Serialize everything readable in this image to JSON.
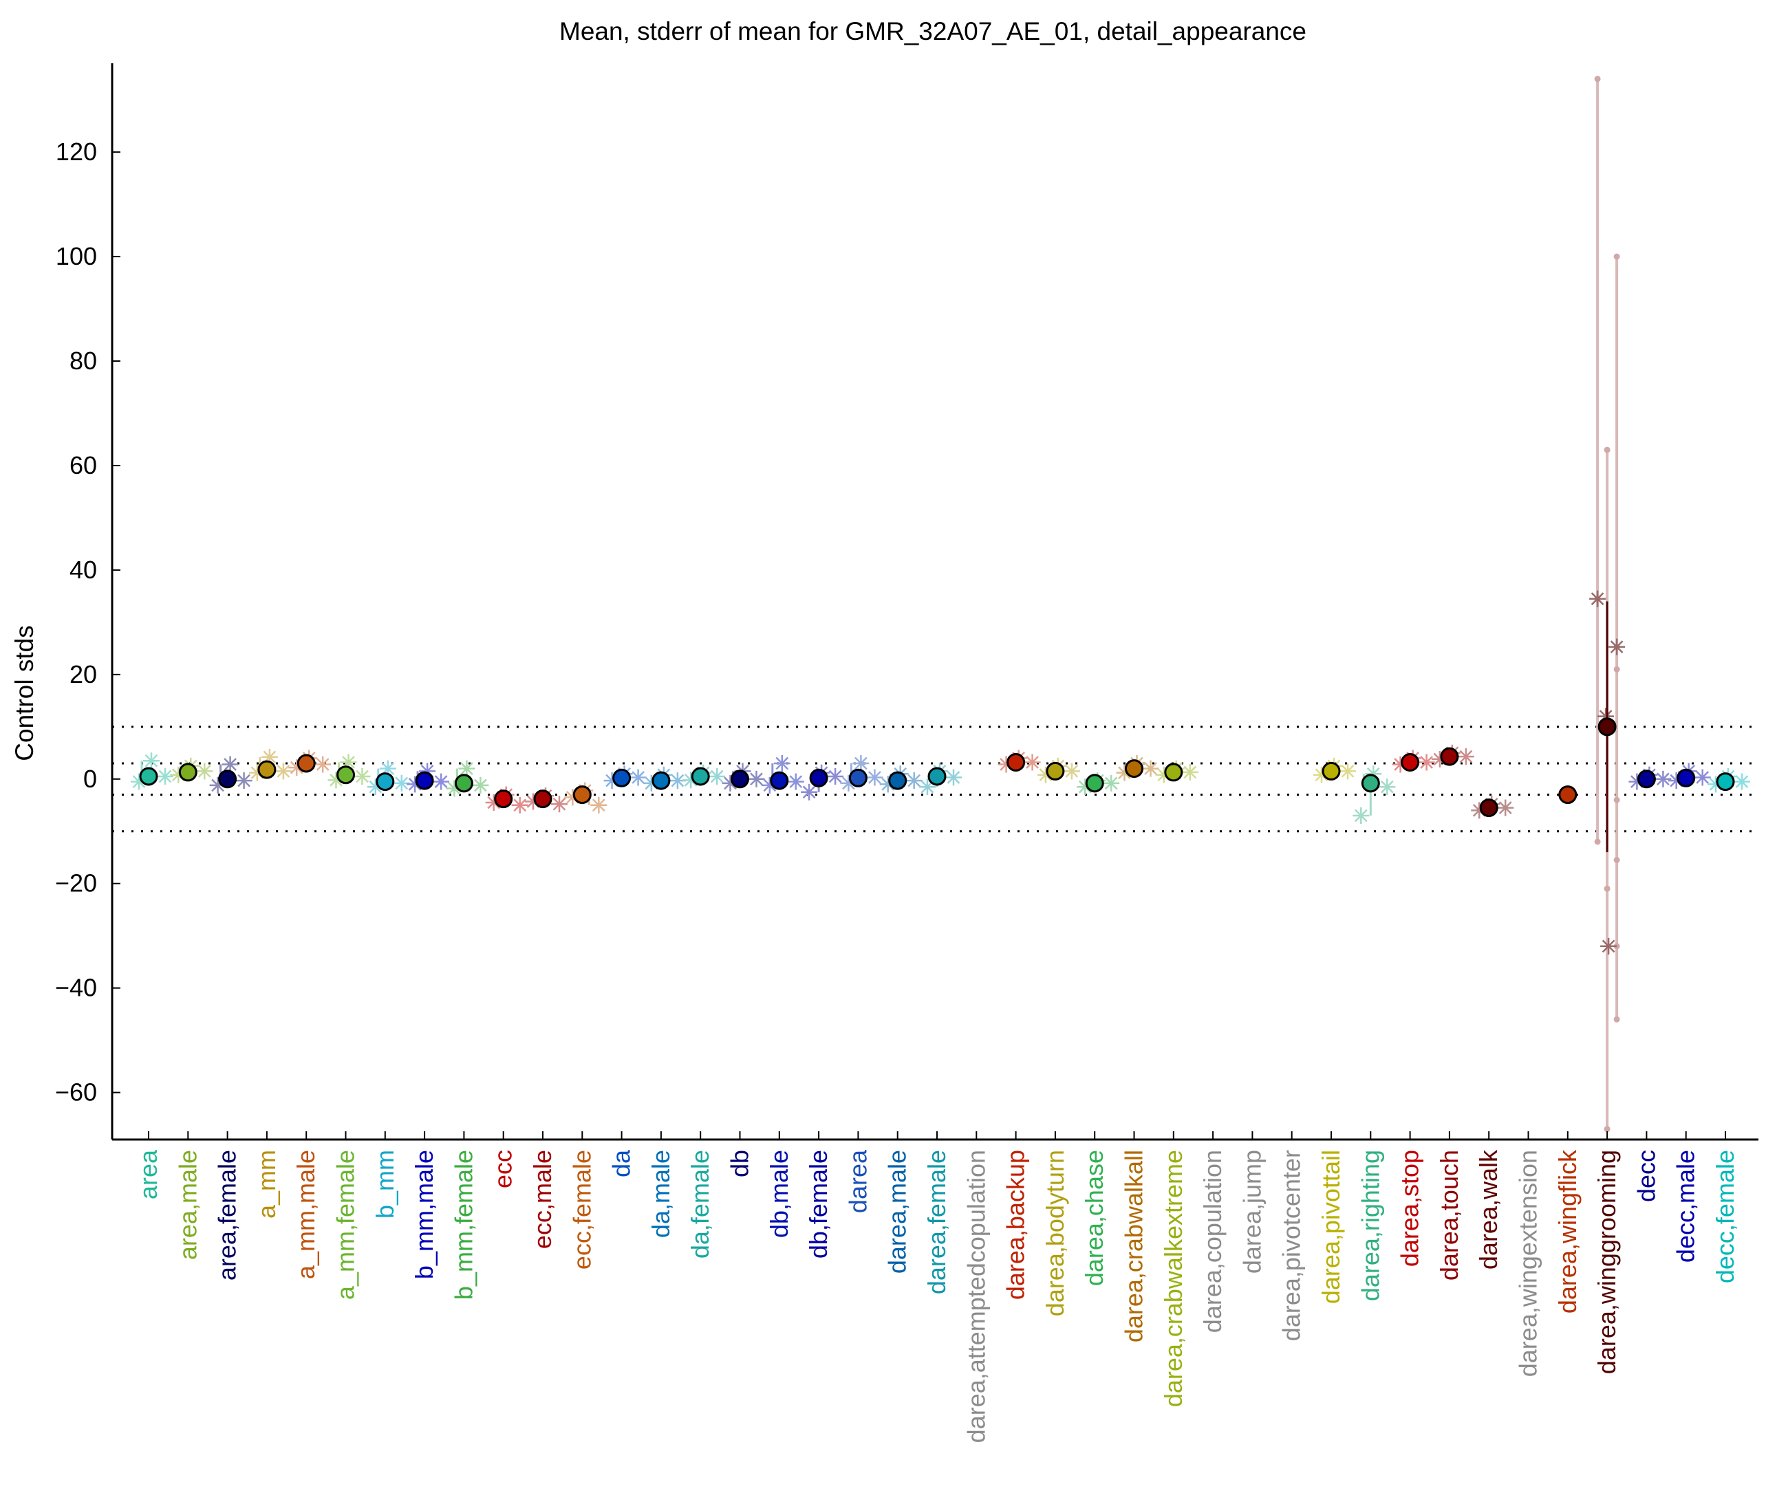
{
  "chart_data": {
    "type": "scatter",
    "title": "Mean, stderr of mean for GMR_32A07_AE_01, detail_appearance",
    "xlabel": "",
    "ylabel": "Control stds",
    "ylim": [
      -69,
      137
    ],
    "yticks": [
      -60,
      -40,
      -20,
      0,
      20,
      40,
      60,
      80,
      100,
      120
    ],
    "reference_lines": [
      10,
      3,
      -3,
      -10
    ],
    "grid": false,
    "categories": [
      {
        "label": "area",
        "color": "#1fb89a",
        "mean": 0.5,
        "ci": [
          -0.5,
          1.5
        ],
        "lines": [
          3.5,
          -0.5,
          0.5
        ]
      },
      {
        "label": "area,male",
        "color": "#7dac1f",
        "mean": 1.3,
        "ci": [
          0.3,
          2.3
        ],
        "lines": [
          2.5,
          0.8,
          1.5
        ]
      },
      {
        "label": "area,female",
        "color": "#00005e",
        "mean": 0,
        "ci": [
          -1,
          1
        ],
        "lines": [
          2.8,
          -1.2,
          -0.3
        ]
      },
      {
        "label": "a_mm",
        "color": "#b8900d",
        "mean": 1.8,
        "ci": [
          0.8,
          2.8
        ],
        "lines": [
          4.2,
          1.2,
          1.5
        ]
      },
      {
        "label": "a_mm,male",
        "color": "#c0520d",
        "mean": 3.0,
        "ci": [
          2.0,
          4.0
        ],
        "lines": [
          4.0,
          2.2,
          2.8
        ]
      },
      {
        "label": "a_mm,female",
        "color": "#6ab52f",
        "mean": 0.8,
        "ci": [
          -0.2,
          1.8
        ],
        "lines": [
          3.2,
          -0.2,
          0.5
        ]
      },
      {
        "label": "b_mm",
        "color": "#12a6c8",
        "mean": -0.5,
        "ci": [
          -1.5,
          0.5
        ],
        "lines": [
          2.0,
          -1.5,
          -0.8
        ]
      },
      {
        "label": "b_mm,male",
        "color": "#0000b8",
        "mean": -0.3,
        "ci": [
          -1.3,
          0.7
        ],
        "lines": [
          1.5,
          -1.0,
          -0.5
        ]
      },
      {
        "label": "b_mm,female",
        "color": "#3aac40",
        "mean": -0.8,
        "ci": [
          -1.8,
          0.2
        ],
        "lines": [
          2.0,
          -1.8,
          -1.2
        ]
      },
      {
        "label": "ecc",
        "color": "#c00000",
        "mean": -3.8,
        "ci": [
          -4.8,
          -2.8
        ],
        "lines": [
          -3.0,
          -4.5,
          -5.0
        ]
      },
      {
        "label": "ecc,male",
        "color": "#a00000",
        "mean": -3.8,
        "ci": [
          -4.8,
          -2.8
        ],
        "lines": [
          -3.2,
          -4.3,
          -4.8
        ]
      },
      {
        "label": "ecc,female",
        "color": "#c05a0d",
        "mean": -3.0,
        "ci": [
          -4.0,
          -2.0
        ],
        "lines": [
          -2.2,
          -3.5,
          -5.0
        ]
      },
      {
        "label": "da",
        "color": "#0050c0",
        "mean": 0.2,
        "ci": [
          -0.8,
          1.2
        ],
        "lines": [
          1.0,
          -0.3,
          0.3
        ]
      },
      {
        "label": "da,male",
        "color": "#0070b8",
        "mean": -0.3,
        "ci": [
          -1.3,
          0.7
        ],
        "lines": [
          0.8,
          -0.8,
          -0.3
        ]
      },
      {
        "label": "da,female",
        "color": "#1aa8a0",
        "mean": 0.5,
        "ci": [
          -0.5,
          1.5
        ],
        "lines": [
          1.2,
          -0.2,
          0.5
        ]
      },
      {
        "label": "db",
        "color": "#000070",
        "mean": 0,
        "ci": [
          -1,
          1
        ],
        "lines": [
          1.5,
          -0.8,
          0.0
        ]
      },
      {
        "label": "db,male",
        "color": "#0010b0",
        "mean": -0.3,
        "ci": [
          -1.3,
          0.7
        ],
        "lines": [
          3.0,
          -1.2,
          -0.5
        ]
      },
      {
        "label": "db,female",
        "color": "#0000a0",
        "mean": 0.2,
        "ci": [
          -0.8,
          1.2
        ],
        "lines": [
          1.2,
          -2.5,
          0.5
        ]
      },
      {
        "label": "darea",
        "color": "#1a50b8",
        "mean": 0.2,
        "ci": [
          -0.8,
          1.2
        ],
        "lines": [
          3.0,
          -0.8,
          0.3
        ]
      },
      {
        "label": "darea,male",
        "color": "#0060a8",
        "mean": -0.3,
        "ci": [
          -1.3,
          0.7
        ],
        "lines": [
          1.0,
          -1.0,
          -0.3
        ]
      },
      {
        "label": "darea,female",
        "color": "#1098a8",
        "mean": 0.5,
        "ci": [
          -0.5,
          1.5
        ],
        "lines": [
          1.5,
          -1.5,
          0.3
        ]
      },
      {
        "label": "darea,attemptedcopulation",
        "color": "#8c8c8c",
        "mean": null,
        "ci": null,
        "lines": []
      },
      {
        "label": "darea,backup",
        "color": "#c02000",
        "mean": 3.2,
        "ci": [
          2.2,
          4.2
        ],
        "lines": [
          4.0,
          2.8,
          3.2
        ]
      },
      {
        "label": "darea,bodyturn",
        "color": "#b0a010",
        "mean": 1.5,
        "ci": [
          0.5,
          2.5
        ],
        "lines": [
          2.5,
          0.8,
          1.5
        ]
      },
      {
        "label": "darea,chase",
        "color": "#30b050",
        "mean": -0.8,
        "ci": [
          -1.8,
          0.2
        ],
        "lines": [
          -0.3,
          -1.5,
          -0.8
        ]
      },
      {
        "label": "darea,crabwalkall",
        "color": "#b06a00",
        "mean": 2.0,
        "ci": [
          1.0,
          3.0
        ],
        "lines": [
          3.0,
          1.2,
          2.0
        ]
      },
      {
        "label": "darea,crabwalkextreme",
        "color": "#98b010",
        "mean": 1.3,
        "ci": [
          0.3,
          2.3
        ],
        "lines": [
          2.0,
          0.8,
          1.3
        ]
      },
      {
        "label": "darea,copulation",
        "color": "#8c8c8c",
        "mean": null,
        "ci": null,
        "lines": []
      },
      {
        "label": "darea,jump",
        "color": "#8c8c8c",
        "mean": null,
        "ci": null,
        "lines": []
      },
      {
        "label": "darea,pivotcenter",
        "color": "#8c8c8c",
        "mean": null,
        "ci": null,
        "lines": []
      },
      {
        "label": "darea,pivottail",
        "color": "#b8b000",
        "mean": 1.5,
        "ci": [
          0.5,
          2.5
        ],
        "lines": [
          2.5,
          0.8,
          1.5
        ]
      },
      {
        "label": "darea,righting",
        "color": "#30b080",
        "mean": -0.8,
        "ci": [
          -1.8,
          0.2
        ],
        "lines": [
          1.0,
          -7.0,
          -1.5
        ]
      },
      {
        "label": "darea,stop",
        "color": "#c00000",
        "mean": 3.2,
        "ci": [
          2.2,
          4.2
        ],
        "lines": [
          4.0,
          2.8,
          3.2
        ]
      },
      {
        "label": "darea,touch",
        "color": "#900000",
        "mean": 4.3,
        "ci": [
          3.3,
          5.3
        ],
        "lines": [
          5.0,
          3.8,
          4.3
        ]
      },
      {
        "label": "darea,walk",
        "color": "#600000",
        "mean": -5.5,
        "ci": [
          -6.5,
          -4.5
        ],
        "lines": [
          -4.8,
          -6.0,
          -5.5
        ]
      },
      {
        "label": "darea,wingextension",
        "color": "#8c8c8c",
        "mean": null,
        "ci": null,
        "lines": []
      },
      {
        "label": "darea,wingflick",
        "color": "#b83000",
        "mean": -3.0,
        "ci": [
          -4.0,
          -2.0
        ],
        "lines": []
      },
      {
        "label": "darea,winggrooming",
        "color": "#500000",
        "mean": 10.0,
        "ci": [
          -14,
          34
        ],
        "lines": [
          [
            134,
            -12,
            34.5
          ],
          [
            63,
            -67,
            12,
            -21
          ],
          [
            100,
            -15.5,
            25.3,
            -32,
            -46,
            21,
            -4
          ]
        ]
      },
      {
        "label": "decc",
        "color": "#000090",
        "mean": 0,
        "ci": [
          -1,
          1
        ],
        "lines": [
          0.8,
          -0.5,
          0.0
        ]
      },
      {
        "label": "decc,male",
        "color": "#0000b0",
        "mean": 0.2,
        "ci": [
          -0.8,
          1.2
        ],
        "lines": [
          1.5,
          -0.3,
          0.3
        ]
      },
      {
        "label": "decc,female",
        "color": "#00b8b8",
        "mean": -0.5,
        "ci": [
          -1.5,
          0.5
        ],
        "lines": [
          0.5,
          -1.0,
          -0.5
        ]
      }
    ]
  }
}
